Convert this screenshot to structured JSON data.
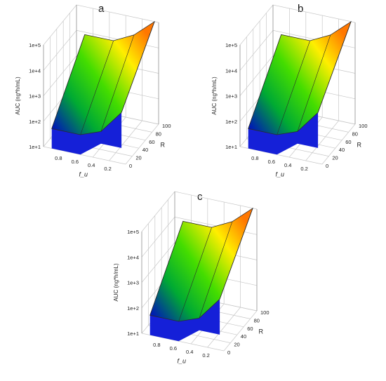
{
  "figure": {
    "panels": [
      "a",
      "b",
      "c"
    ]
  },
  "chart_data": [
    {
      "type": "surface3d",
      "panel_label": "a",
      "zlabel": "AUC (ng*h/mL)",
      "xlabel": "f_u",
      "ylabel": "R",
      "x_ticks": [
        "0.8",
        "0.6",
        "0.4",
        "0.2"
      ],
      "y_ticks": [
        "0",
        "20",
        "40",
        "60",
        "80",
        "100"
      ],
      "z_ticks": [
        "1e+1",
        "1e+2",
        "1e+3",
        "1e+4",
        "1e+5"
      ],
      "x_range": [
        0,
        1
      ],
      "y_range": [
        0,
        100
      ],
      "z_range": [
        10,
        100000
      ],
      "z_scale": "log",
      "grid": true,
      "colormap": [
        "#0000cc",
        "#00aa33",
        "#44dd00",
        "#ffee00",
        "#ff7700"
      ],
      "surface_outline": {
        "fu": [
          0.9,
          0.55,
          0.3,
          0.05,
          0.05,
          0.3,
          0.55,
          0.9
        ],
        "R": [
          0,
          0,
          0,
          0,
          100,
          100,
          100,
          100
        ],
        "auc": [
          60,
          60,
          120,
          1000,
          100000,
          20000,
          8000,
          8000
        ]
      }
    },
    {
      "type": "surface3d",
      "panel_label": "b",
      "zlabel": "AUC (ng*h/mL)",
      "xlabel": "f_u",
      "ylabel": "R",
      "x_ticks": [
        "0.8",
        "0.6",
        "0.4",
        "0.2"
      ],
      "y_ticks": [
        "0",
        "20",
        "40",
        "60",
        "80",
        "100"
      ],
      "z_ticks": [
        "1e+1",
        "1e+2",
        "1e+3",
        "1e+4",
        "1e+5"
      ],
      "x_range": [
        0,
        1
      ],
      "y_range": [
        0,
        100
      ],
      "z_range": [
        10,
        100000
      ],
      "z_scale": "log",
      "grid": true,
      "colormap": [
        "#0000cc",
        "#00aa33",
        "#44dd00",
        "#ffee00",
        "#ff7700"
      ],
      "surface_outline": {
        "fu": [
          0.9,
          0.55,
          0.3,
          0.05,
          0.05,
          0.3,
          0.55,
          0.9
        ],
        "R": [
          0,
          0,
          0,
          0,
          100,
          100,
          100,
          100
        ],
        "auc": [
          60,
          60,
          120,
          1000,
          100000,
          20000,
          8000,
          8000
        ]
      }
    },
    {
      "type": "surface3d",
      "panel_label": "c",
      "zlabel": "AUC (ng*h/mL)",
      "xlabel": "f_u",
      "ylabel": "R",
      "x_ticks": [
        "0.8",
        "0.6",
        "0.4",
        "0.2"
      ],
      "y_ticks": [
        "0",
        "20",
        "40",
        "60",
        "80",
        "100"
      ],
      "z_ticks": [
        "1e+1",
        "1e+2",
        "1e+3",
        "1e+4",
        "1e+5"
      ],
      "x_range": [
        0,
        1
      ],
      "y_range": [
        0,
        100
      ],
      "z_range": [
        10,
        100000
      ],
      "z_scale": "log",
      "grid": true,
      "colormap": [
        "#0000cc",
        "#00aa33",
        "#44dd00",
        "#ffee00",
        "#ff7700"
      ],
      "surface_outline": {
        "fu": [
          0.9,
          0.55,
          0.3,
          0.05,
          0.05,
          0.3,
          0.55,
          0.9
        ],
        "R": [
          0,
          0,
          0,
          0,
          100,
          100,
          100,
          100
        ],
        "auc": [
          60,
          60,
          120,
          1000,
          100000,
          20000,
          8000,
          8000
        ]
      }
    }
  ]
}
